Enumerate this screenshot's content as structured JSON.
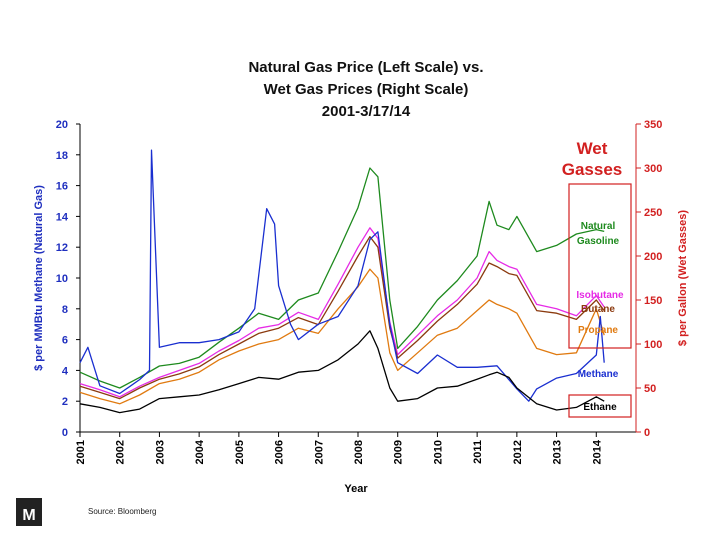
{
  "chart_data": {
    "type": "line",
    "title": [
      "Natural Gas Price (Left Scale) vs.",
      "Wet Gas Prices (Right Scale)",
      "2001-3/17/14"
    ],
    "xlabel": "Year",
    "ylabel_left": "$ per MMBtu Methane (Natural Gas)",
    "ylabel_right": "$ per Gallon (Wet Gasses)",
    "xlim": [
      2001,
      2015
    ],
    "ylim_left": [
      0,
      20
    ],
    "ylim_right": [
      0,
      350
    ],
    "x_ticks": [
      "2001",
      "2002",
      "2003",
      "2004",
      "2005",
      "2006",
      "2007",
      "2008",
      "2009",
      "2010",
      "2011",
      "2012",
      "2013",
      "2014"
    ],
    "y_ticks_left": [
      "0",
      "2",
      "4",
      "6",
      "8",
      "10",
      "12",
      "14",
      "16",
      "18",
      "20"
    ],
    "y_ticks_right": [
      "0",
      "50",
      "100",
      "150",
      "200",
      "250",
      "300",
      "350"
    ],
    "wet_gasses_label": [
      "Wet",
      "Gasses"
    ],
    "source": "Source: Bloomberg",
    "logo_text": "M",
    "colors": {
      "left_axis": "#1f2fbf",
      "right_axis": "#d22020",
      "methane": "#1a2fd0",
      "ethane": "#000000",
      "propane": "#e07a10",
      "butane": "#8b3a0f",
      "isobutane": "#e62be6",
      "natural_gasoline": "#1e8a1e"
    },
    "series": [
      {
        "name": "Natural Gasoline",
        "legend": [
          "Natural",
          "Gasoline"
        ],
        "scale": "right",
        "color": "#1e8a1e",
        "x": [
          2001,
          2001.5,
          2002,
          2002.5,
          2003,
          2003.5,
          2004,
          2004.5,
          2005,
          2005.5,
          2006,
          2006.5,
          2007,
          2007.5,
          2008,
          2008.3,
          2008.5,
          2008.8,
          2009,
          2009.5,
          2010,
          2010.5,
          2011,
          2011.3,
          2011.5,
          2011.8,
          2012,
          2012.5,
          2013,
          2013.5,
          2014,
          2014.2
        ],
        "values": [
          68,
          58,
          50,
          62,
          75,
          78,
          85,
          102,
          118,
          135,
          128,
          150,
          158,
          205,
          255,
          300,
          290,
          150,
          95,
          120,
          150,
          172,
          200,
          262,
          235,
          230,
          245,
          205,
          212,
          225,
          230,
          228
        ]
      },
      {
        "name": "Isobutane",
        "legend": [
          "Isobutane"
        ],
        "scale": "right",
        "color": "#e62be6",
        "x": [
          2001,
          2001.5,
          2002,
          2002.5,
          2003,
          2003.5,
          2004,
          2004.5,
          2005,
          2005.5,
          2006,
          2006.5,
          2007,
          2007.5,
          2008,
          2008.3,
          2008.5,
          2008.8,
          2009,
          2009.5,
          2010,
          2010.5,
          2011,
          2011.3,
          2011.5,
          2011.8,
          2012,
          2012.5,
          2013,
          2013.5,
          2014,
          2014.2
        ],
        "values": [
          55,
          48,
          40,
          52,
          62,
          70,
          78,
          92,
          104,
          118,
          122,
          136,
          128,
          168,
          210,
          232,
          220,
          125,
          88,
          110,
          132,
          150,
          175,
          205,
          195,
          188,
          185,
          145,
          140,
          132,
          155,
          142
        ]
      },
      {
        "name": "Butane",
        "legend": [
          "Butane"
        ],
        "scale": "right",
        "color": "#8b3a0f",
        "x": [
          2001,
          2001.5,
          2002,
          2002.5,
          2003,
          2003.5,
          2004,
          2004.5,
          2005,
          2005.5,
          2006,
          2006.5,
          2007,
          2007.5,
          2008,
          2008.3,
          2008.5,
          2008.8,
          2009,
          2009.5,
          2010,
          2010.5,
          2011,
          2011.3,
          2011.5,
          2011.8,
          2012,
          2012.5,
          2013,
          2013.5,
          2014,
          2014.2
        ],
        "values": [
          52,
          45,
          38,
          50,
          60,
          66,
          74,
          88,
          100,
          112,
          118,
          130,
          122,
          160,
          200,
          222,
          210,
          118,
          84,
          104,
          126,
          145,
          168,
          192,
          188,
          180,
          178,
          138,
          135,
          128,
          150,
          138
        ]
      },
      {
        "name": "Propane",
        "legend": [
          "Propane"
        ],
        "scale": "right",
        "color": "#e07a10",
        "x": [
          2001,
          2001.5,
          2002,
          2002.5,
          2003,
          2003.5,
          2004,
          2004.5,
          2005,
          2005.5,
          2006,
          2006.5,
          2007,
          2007.5,
          2008,
          2008.3,
          2008.5,
          2008.8,
          2009,
          2009.5,
          2010,
          2010.5,
          2011,
          2011.3,
          2011.5,
          2011.8,
          2012,
          2012.5,
          2013,
          2013.5,
          2014,
          2014.2
        ],
        "values": [
          45,
          38,
          32,
          42,
          55,
          60,
          68,
          82,
          92,
          100,
          105,
          118,
          112,
          140,
          165,
          185,
          175,
          90,
          70,
          90,
          110,
          118,
          138,
          150,
          145,
          140,
          135,
          95,
          88,
          90,
          140,
          110
        ]
      },
      {
        "name": "Methane",
        "legend": [
          "Methane"
        ],
        "scale": "left",
        "color": "#1a2fd0",
        "x": [
          2001,
          2001.2,
          2001.5,
          2002,
          2002.5,
          2002.75,
          2002.8,
          2003,
          2003.5,
          2004,
          2004.5,
          2005,
          2005.4,
          2005.7,
          2005.9,
          2006,
          2006.3,
          2006.5,
          2007,
          2007.5,
          2008,
          2008.3,
          2008.5,
          2008.8,
          2009,
          2009.5,
          2010,
          2010.5,
          2011,
          2011.5,
          2012,
          2012.3,
          2012.5,
          2013,
          2013.5,
          2014,
          2014.1,
          2014.2
        ],
        "values": [
          4.5,
          5.5,
          3.0,
          2.5,
          3.4,
          4.0,
          18.3,
          5.5,
          5.8,
          5.8,
          6.0,
          6.5,
          8.0,
          14.5,
          13.5,
          9.5,
          7.0,
          6.0,
          7.0,
          7.5,
          9.5,
          12.5,
          13.0,
          7.0,
          4.5,
          3.8,
          5.0,
          4.2,
          4.2,
          4.3,
          2.8,
          2.0,
          2.8,
          3.5,
          3.8,
          5.0,
          7.5,
          4.5
        ]
      },
      {
        "name": "Ethane",
        "legend": [
          "Ethane"
        ],
        "scale": "right",
        "color": "#000000",
        "x": [
          2001,
          2001.5,
          2002,
          2002.5,
          2003,
          2003.5,
          2004,
          2004.5,
          2005,
          2005.5,
          2006,
          2006.5,
          2007,
          2007.5,
          2008,
          2008.3,
          2008.5,
          2008.8,
          2009,
          2009.5,
          2010,
          2010.5,
          2011,
          2011.3,
          2011.5,
          2011.8,
          2012,
          2012.5,
          2013,
          2013.5,
          2014,
          2014.2
        ],
        "values": [
          32,
          28,
          22,
          26,
          38,
          40,
          42,
          48,
          55,
          62,
          60,
          68,
          70,
          82,
          100,
          115,
          95,
          50,
          35,
          38,
          50,
          52,
          60,
          65,
          68,
          62,
          50,
          32,
          25,
          28,
          40,
          35
        ]
      }
    ]
  }
}
